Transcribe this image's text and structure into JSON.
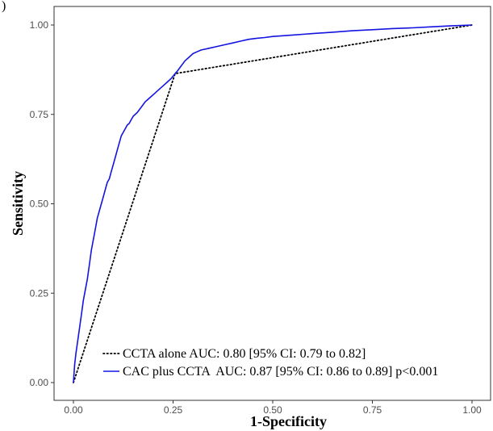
{
  "panel_label": ")",
  "chart_data": {
    "type": "line",
    "xlabel": "1-Specificity",
    "ylabel": "Sensitivity",
    "xlim": [
      0,
      1
    ],
    "ylim": [
      0,
      1
    ],
    "x_ticks": [
      0.0,
      0.25,
      0.5,
      0.75,
      1.0
    ],
    "x_tick_labels": [
      "0.00",
      "0.25",
      "0.50",
      "0.75",
      "1.00"
    ],
    "y_ticks": [
      0.0,
      0.25,
      0.5,
      0.75,
      1.0
    ],
    "y_tick_labels": [
      "0.00",
      "0.25",
      "0.50",
      "0.75",
      "1.00"
    ],
    "grid": false,
    "legend_position": "bottom-right",
    "series": [
      {
        "name": "CCTA alone AUC: 0.80 [95% CI: 0.79 to 0.82]",
        "style": "dotted",
        "color": "#000000",
        "x": [
          0.0,
          0.255,
          1.0
        ],
        "y": [
          0.0,
          0.864,
          1.0
        ]
      },
      {
        "name": "CAC plus CCTA  AUC: 0.87 [95% CI: 0.86 to 0.89] p<0.001",
        "style": "solid",
        "color": "#1414e0",
        "x": [
          0.0,
          0.003,
          0.006,
          0.01,
          0.015,
          0.02,
          0.025,
          0.03,
          0.035,
          0.04,
          0.045,
          0.05,
          0.055,
          0.06,
          0.065,
          0.07,
          0.075,
          0.08,
          0.085,
          0.09,
          0.095,
          0.1,
          0.105,
          0.11,
          0.115,
          0.12,
          0.125,
          0.13,
          0.135,
          0.14,
          0.145,
          0.15,
          0.16,
          0.17,
          0.18,
          0.185,
          0.195,
          0.205,
          0.215,
          0.225,
          0.235,
          0.245,
          0.255,
          0.26,
          0.27,
          0.28,
          0.29,
          0.3,
          0.31,
          0.32,
          0.34,
          0.36,
          0.38,
          0.4,
          0.42,
          0.44,
          0.46,
          0.48,
          0.5,
          0.55,
          0.6,
          0.65,
          0.7,
          0.75,
          0.8,
          0.85,
          0.9,
          0.95,
          1.0
        ],
        "y": [
          0.0,
          0.05,
          0.08,
          0.11,
          0.15,
          0.19,
          0.23,
          0.26,
          0.29,
          0.33,
          0.37,
          0.4,
          0.43,
          0.46,
          0.48,
          0.5,
          0.52,
          0.54,
          0.56,
          0.57,
          0.59,
          0.61,
          0.63,
          0.65,
          0.67,
          0.69,
          0.7,
          0.71,
          0.72,
          0.725,
          0.735,
          0.745,
          0.755,
          0.77,
          0.785,
          0.79,
          0.8,
          0.81,
          0.82,
          0.83,
          0.84,
          0.85,
          0.864,
          0.87,
          0.885,
          0.9,
          0.91,
          0.92,
          0.925,
          0.93,
          0.935,
          0.94,
          0.945,
          0.95,
          0.955,
          0.96,
          0.963,
          0.965,
          0.968,
          0.972,
          0.976,
          0.98,
          0.984,
          0.987,
          0.99,
          0.992,
          0.995,
          0.998,
          1.0
        ]
      }
    ]
  }
}
